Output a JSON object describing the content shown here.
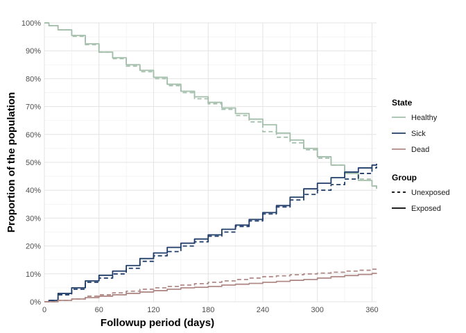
{
  "chart_data": {
    "type": "line",
    "title": "",
    "xlabel": "Followup period (days)",
    "ylabel": "Proportion of the population",
    "xlim": [
      0,
      365
    ],
    "ylim": [
      0,
      1
    ],
    "x_ticks": [
      0,
      60,
      120,
      180,
      240,
      300,
      360
    ],
    "x_tick_labels": [
      "0",
      "60",
      "120",
      "180",
      "240",
      "300",
      "360"
    ],
    "y_ticks": [
      0,
      0.1,
      0.2,
      0.3,
      0.4,
      0.5,
      0.6,
      0.7,
      0.8,
      0.9,
      1.0
    ],
    "y_tick_labels": [
      "0%",
      "10%",
      "20%",
      "30%",
      "40%",
      "50%",
      "60%",
      "70%",
      "80%",
      "90%",
      "100%"
    ],
    "grid": true,
    "legend_position": "right",
    "legends": [
      {
        "title": "State",
        "items": [
          {
            "label": "Healthy",
            "color": "#a3bfab"
          },
          {
            "label": "Sick",
            "color": "#1f3d68"
          },
          {
            "label": "Dead",
            "color": "#b08a86"
          }
        ]
      },
      {
        "title": "Group",
        "items": [
          {
            "label": "Unexposed",
            "linetype": "dashed"
          },
          {
            "label": "Exposed",
            "linetype": "solid"
          }
        ]
      }
    ],
    "series": [
      {
        "state": "Healthy",
        "group": "Exposed",
        "color": "#a3bfab",
        "linetype": "solid",
        "x": [
          0,
          5,
          15,
          30,
          45,
          60,
          75,
          90,
          105,
          120,
          135,
          150,
          165,
          180,
          195,
          210,
          225,
          240,
          255,
          270,
          285,
          300,
          315,
          330,
          345,
          360,
          365
        ],
        "y": [
          1.0,
          0.99,
          0.975,
          0.955,
          0.925,
          0.895,
          0.875,
          0.85,
          0.83,
          0.805,
          0.78,
          0.755,
          0.735,
          0.715,
          0.695,
          0.675,
          0.655,
          0.635,
          0.605,
          0.58,
          0.55,
          0.52,
          0.49,
          0.46,
          0.435,
          0.415,
          0.405
        ]
      },
      {
        "state": "Healthy",
        "group": "Unexposed",
        "color": "#a3bfab",
        "linetype": "dashed",
        "x": [
          0,
          5,
          15,
          30,
          45,
          60,
          75,
          90,
          105,
          120,
          135,
          150,
          165,
          180,
          195,
          210,
          225,
          240,
          255,
          270,
          285,
          300,
          315,
          330,
          345,
          360,
          365
        ],
        "y": [
          1.0,
          0.99,
          0.975,
          0.952,
          0.922,
          0.895,
          0.872,
          0.845,
          0.825,
          0.8,
          0.775,
          0.75,
          0.728,
          0.71,
          0.69,
          0.668,
          0.645,
          0.61,
          0.59,
          0.57,
          0.545,
          0.515,
          0.49,
          0.465,
          0.44,
          0.415,
          0.405
        ]
      },
      {
        "state": "Sick",
        "group": "Exposed",
        "color": "#1f3d68",
        "linetype": "solid",
        "x": [
          0,
          5,
          15,
          30,
          45,
          60,
          75,
          90,
          105,
          120,
          135,
          150,
          165,
          180,
          195,
          210,
          225,
          240,
          255,
          270,
          285,
          300,
          315,
          330,
          345,
          360,
          365
        ],
        "y": [
          0.0,
          0.005,
          0.03,
          0.05,
          0.075,
          0.095,
          0.11,
          0.13,
          0.155,
          0.175,
          0.195,
          0.21,
          0.225,
          0.24,
          0.26,
          0.275,
          0.295,
          0.32,
          0.345,
          0.375,
          0.405,
          0.425,
          0.445,
          0.465,
          0.48,
          0.49,
          0.495
        ]
      },
      {
        "state": "Sick",
        "group": "Unexposed",
        "color": "#1f3d68",
        "linetype": "dashed",
        "x": [
          0,
          5,
          15,
          30,
          45,
          60,
          75,
          90,
          105,
          120,
          135,
          150,
          165,
          180,
          195,
          210,
          225,
          240,
          255,
          270,
          285,
          300,
          315,
          330,
          345,
          360,
          365
        ],
        "y": [
          0.0,
          0.005,
          0.025,
          0.045,
          0.07,
          0.085,
          0.1,
          0.12,
          0.145,
          0.165,
          0.18,
          0.2,
          0.215,
          0.235,
          0.25,
          0.27,
          0.29,
          0.315,
          0.34,
          0.365,
          0.385,
          0.4,
          0.42,
          0.44,
          0.46,
          0.48,
          0.485
        ]
      },
      {
        "state": "Dead",
        "group": "Exposed",
        "color": "#b08a86",
        "linetype": "solid",
        "x": [
          0,
          5,
          15,
          30,
          45,
          60,
          75,
          90,
          105,
          120,
          135,
          150,
          165,
          180,
          195,
          210,
          225,
          240,
          255,
          270,
          285,
          300,
          315,
          330,
          345,
          360,
          365
        ],
        "y": [
          0.0,
          0.0,
          0.005,
          0.01,
          0.015,
          0.02,
          0.025,
          0.03,
          0.035,
          0.04,
          0.045,
          0.05,
          0.052,
          0.055,
          0.06,
          0.063,
          0.066,
          0.07,
          0.073,
          0.077,
          0.08,
          0.085,
          0.09,
          0.094,
          0.098,
          0.102,
          0.103
        ]
      },
      {
        "state": "Dead",
        "group": "Unexposed",
        "color": "#b08a86",
        "linetype": "dashed",
        "x": [
          0,
          5,
          15,
          30,
          45,
          60,
          75,
          90,
          105,
          120,
          135,
          150,
          165,
          180,
          195,
          210,
          225,
          240,
          255,
          270,
          285,
          300,
          315,
          330,
          345,
          360,
          365
        ],
        "y": [
          0.0,
          0.0,
          0.005,
          0.01,
          0.02,
          0.025,
          0.032,
          0.038,
          0.045,
          0.05,
          0.055,
          0.06,
          0.065,
          0.07,
          0.075,
          0.08,
          0.085,
          0.09,
          0.093,
          0.097,
          0.1,
          0.103,
          0.106,
          0.11,
          0.113,
          0.117,
          0.118
        ]
      }
    ]
  }
}
